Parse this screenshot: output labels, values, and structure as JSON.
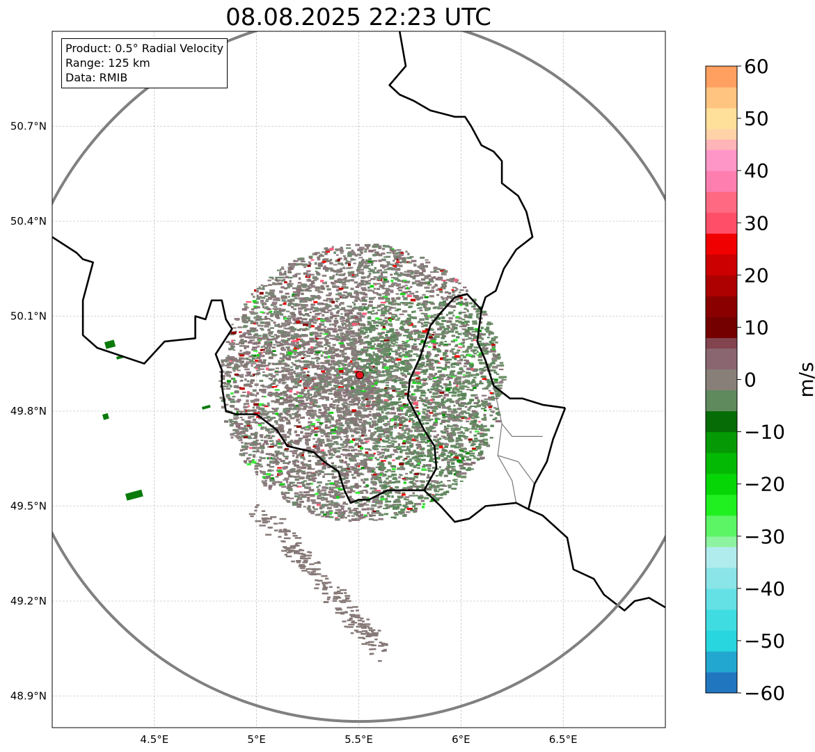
{
  "title": "08.08.2025 22:23 UTC",
  "info": {
    "product": "Product: 0.5° Radial Velocity",
    "range": "Range: 125 km",
    "source": "Data: RMIB"
  },
  "map": {
    "lon_range": [
      4.0,
      7.0
    ],
    "lat_range": [
      48.8,
      51.0
    ],
    "lon_ticks": [
      {
        "value": 4.5,
        "label": "4.5°E"
      },
      {
        "value": 5.0,
        "label": "5°E"
      },
      {
        "value": 5.5,
        "label": "5.5°E"
      },
      {
        "value": 6.0,
        "label": "6°E"
      },
      {
        "value": 6.5,
        "label": "6.5°E"
      }
    ],
    "lat_ticks": [
      {
        "value": 50.7,
        "label": "50.7°N"
      },
      {
        "value": 50.4,
        "label": "50.4°N"
      },
      {
        "value": 50.1,
        "label": "50.1°N"
      },
      {
        "value": 49.8,
        "label": "49.8°N"
      },
      {
        "value": 49.5,
        "label": "49.5°N"
      },
      {
        "value": 49.2,
        "label": "49.2°N"
      },
      {
        "value": 48.9,
        "label": "48.9°N"
      }
    ],
    "radar_site": {
      "lon": 5.505,
      "lat": 49.914
    },
    "range_ring_color": "#808080",
    "site_marker_color": "#e8141e",
    "borders": [
      [
        [
          5.7,
          51.0
        ],
        [
          5.73,
          50.89
        ],
        [
          5.65,
          50.83
        ],
        [
          5.7,
          50.8
        ],
        [
          5.77,
          50.78
        ],
        [
          5.85,
          50.75
        ],
        [
          5.97,
          50.73
        ],
        [
          6.02,
          50.73
        ],
        [
          6.05,
          50.7
        ],
        [
          6.1,
          50.64
        ],
        [
          6.16,
          50.62
        ],
        [
          6.2,
          50.59
        ],
        [
          6.2,
          50.52
        ],
        [
          6.28,
          50.48
        ],
        [
          6.32,
          50.43
        ],
        [
          6.35,
          50.35
        ],
        [
          6.27,
          50.31
        ],
        [
          6.21,
          50.25
        ],
        [
          6.17,
          50.18
        ],
        [
          6.12,
          50.16
        ],
        [
          6.1,
          50.12
        ],
        [
          6.08,
          50.02
        ],
        [
          6.12,
          49.96
        ],
        [
          6.16,
          49.88
        ],
        [
          6.24,
          49.84
        ],
        [
          6.3,
          49.84
        ],
        [
          6.4,
          49.82
        ],
        [
          6.51,
          49.81
        ]
      ],
      [
        [
          6.51,
          49.81
        ],
        [
          6.45,
          49.71
        ],
        [
          6.42,
          49.64
        ],
        [
          6.36,
          49.57
        ],
        [
          6.33,
          49.49
        ]
      ],
      [
        [
          6.33,
          49.49
        ],
        [
          6.4,
          49.47
        ],
        [
          6.52,
          49.4
        ],
        [
          6.55,
          49.3
        ],
        [
          6.65,
          49.27
        ],
        [
          6.7,
          49.22
        ],
        [
          6.8,
          49.17
        ],
        [
          6.85,
          49.2
        ],
        [
          6.92,
          49.21
        ],
        [
          7.0,
          49.18
        ]
      ],
      [
        [
          6.33,
          49.49
        ],
        [
          6.27,
          49.51
        ],
        [
          6.12,
          49.5
        ],
        [
          6.04,
          49.46
        ],
        [
          5.97,
          49.45
        ],
        [
          5.9,
          49.5
        ],
        [
          5.82,
          49.55
        ],
        [
          5.79,
          49.55
        ],
        [
          5.74,
          49.55
        ],
        [
          5.64,
          49.55
        ],
        [
          5.55,
          49.52
        ],
        [
          5.5,
          49.52
        ],
        [
          5.46,
          49.51
        ],
        [
          5.43,
          49.55
        ],
        [
          5.4,
          49.61
        ],
        [
          5.33,
          49.64
        ],
        [
          5.28,
          49.67
        ],
        [
          5.15,
          49.69
        ],
        [
          5.1,
          49.74
        ],
        [
          5.0,
          49.79
        ],
        [
          4.9,
          49.79
        ],
        [
          4.85,
          49.8
        ],
        [
          4.83,
          49.88
        ],
        [
          4.83,
          49.93
        ],
        [
          4.8,
          49.98
        ],
        [
          4.88,
          50.06
        ],
        [
          4.85,
          50.09
        ],
        [
          4.83,
          50.15
        ],
        [
          4.78,
          50.15
        ],
        [
          4.75,
          50.09
        ],
        [
          4.7,
          50.1
        ],
        [
          4.7,
          50.03
        ],
        [
          4.55,
          50.02
        ],
        [
          4.45,
          49.95
        ],
        [
          4.22,
          50.0
        ],
        [
          4.15,
          50.04
        ],
        [
          4.15,
          50.15
        ],
        [
          4.2,
          50.27
        ],
        [
          4.15,
          50.28
        ],
        [
          4.12,
          50.3
        ],
        [
          4.0,
          50.35
        ]
      ],
      [
        [
          6.1,
          50.12
        ],
        [
          6.03,
          50.17
        ],
        [
          5.97,
          50.16
        ],
        [
          5.9,
          50.11
        ],
        [
          5.85,
          50.07
        ],
        [
          5.8,
          49.97
        ],
        [
          5.75,
          49.9
        ],
        [
          5.74,
          49.84
        ],
        [
          5.82,
          49.74
        ],
        [
          5.87,
          49.69
        ],
        [
          5.88,
          49.62
        ],
        [
          5.82,
          49.55
        ]
      ]
    ],
    "regions": [
      [
        [
          6.16,
          49.88
        ],
        [
          6.2,
          49.76
        ],
        [
          6.25,
          49.72
        ],
        [
          6.3,
          49.72
        ],
        [
          6.4,
          49.72
        ]
      ],
      [
        [
          6.2,
          49.76
        ],
        [
          6.18,
          49.66
        ],
        [
          6.28,
          49.64
        ],
        [
          6.36,
          49.57
        ]
      ],
      [
        [
          6.18,
          49.66
        ],
        [
          6.25,
          49.58
        ],
        [
          6.27,
          49.51
        ]
      ]
    ]
  },
  "colorbar": {
    "label": "m/s",
    "vmin": -60,
    "vmax": 60,
    "ticks": [
      60,
      50,
      40,
      30,
      20,
      10,
      0,
      -10,
      -20,
      -30,
      -40,
      -50,
      -60
    ],
    "tick_labels": [
      "60",
      "50",
      "40",
      "30",
      "20",
      "10",
      "0",
      "−10",
      "−20",
      "−30",
      "−40",
      "−50",
      "−60"
    ],
    "bands": [
      {
        "from": -60,
        "to": -56,
        "color": "#2176c0"
      },
      {
        "from": -56,
        "to": -52,
        "color": "#22a8d0"
      },
      {
        "from": -52,
        "to": -48,
        "color": "#27d6de"
      },
      {
        "from": -48,
        "to": -44,
        "color": "#3fdde2"
      },
      {
        "from": -44,
        "to": -40,
        "color": "#64e1e5"
      },
      {
        "from": -40,
        "to": -36,
        "color": "#8ae5e8"
      },
      {
        "from": -36,
        "to": -32,
        "color": "#b0ecee"
      },
      {
        "from": -32,
        "to": -30,
        "color": "#8ef3a0"
      },
      {
        "from": -30,
        "to": -26,
        "color": "#5cf566"
      },
      {
        "from": -26,
        "to": -22,
        "color": "#20f020"
      },
      {
        "from": -22,
        "to": -18,
        "color": "#06d606"
      },
      {
        "from": -18,
        "to": -14,
        "color": "#04b904"
      },
      {
        "from": -14,
        "to": -10,
        "color": "#059a05"
      },
      {
        "from": -10,
        "to": -6,
        "color": "#066c06"
      },
      {
        "from": -6,
        "to": -2,
        "color": "#5e8a5e"
      },
      {
        "from": -2,
        "to": 2,
        "color": "#888078"
      },
      {
        "from": 2,
        "to": 6,
        "color": "#8a6670"
      },
      {
        "from": 6,
        "to": 8,
        "color": "#82444e"
      },
      {
        "from": 8,
        "to": 12,
        "color": "#740000"
      },
      {
        "from": 12,
        "to": 16,
        "color": "#8a0000"
      },
      {
        "from": 16,
        "to": 20,
        "color": "#ad0000"
      },
      {
        "from": 20,
        "to": 24,
        "color": "#cc0000"
      },
      {
        "from": 24,
        "to": 28,
        "color": "#f00000"
      },
      {
        "from": 28,
        "to": 32,
        "color": "#ff4f68"
      },
      {
        "from": 32,
        "to": 36,
        "color": "#ff6a82"
      },
      {
        "from": 36,
        "to": 40,
        "color": "#ff7eb0"
      },
      {
        "from": 40,
        "to": 44,
        "color": "#ff96c8"
      },
      {
        "from": 44,
        "to": 46,
        "color": "#ffb4b8"
      },
      {
        "from": 46,
        "to": 48,
        "color": "#ffd2a8"
      },
      {
        "from": 48,
        "to": 52,
        "color": "#ffe09a"
      },
      {
        "from": 52,
        "to": 56,
        "color": "#ffc480"
      },
      {
        "from": 56,
        "to": 60,
        "color": "#ffa060"
      }
    ]
  }
}
